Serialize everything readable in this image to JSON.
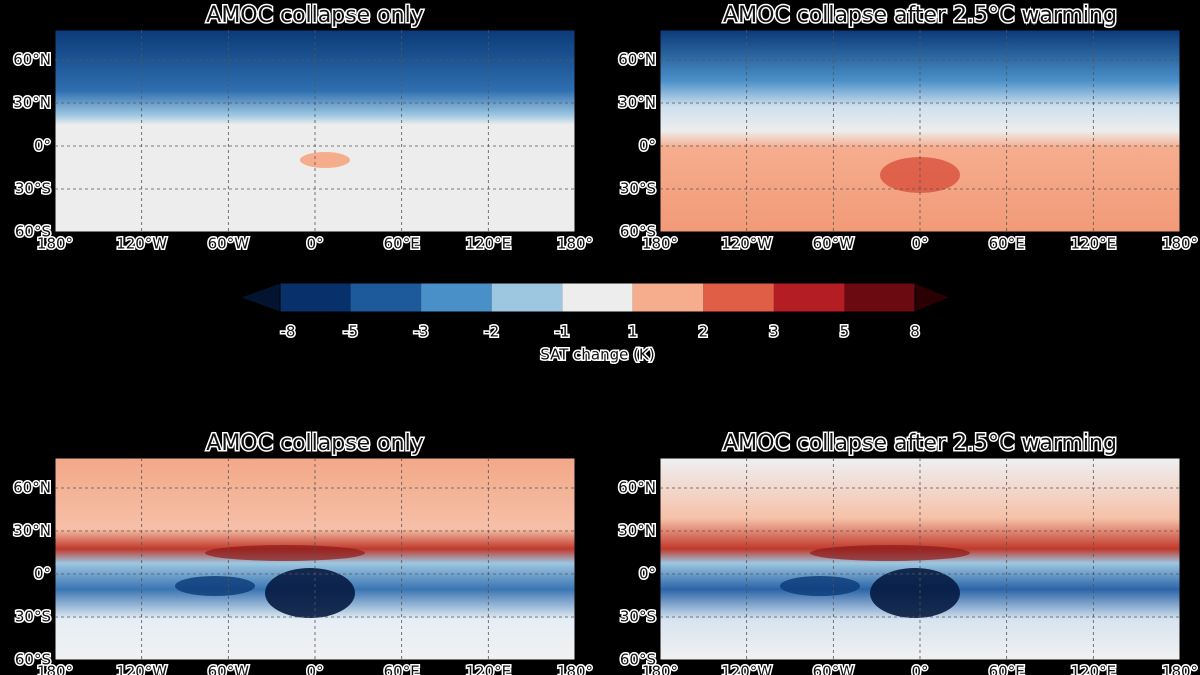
{
  "panels": [
    {
      "title": "AMOC collapse only",
      "field": "sat_a"
    },
    {
      "title": "AMOC collapse after 2.5°C warming",
      "field": "sat_b"
    },
    {
      "title": "AMOC collapse only",
      "field": "pr_a"
    },
    {
      "title": "AMOC collapse after 2.5°C warming",
      "field": "pr_b"
    }
  ],
  "lon_labels": [
    "180°",
    "120°W",
    "60°W",
    "0°",
    "60°E",
    "120°E",
    "180°"
  ],
  "lat_labels": [
    "60°N",
    "30°N",
    "0°",
    "30°S",
    "60°S"
  ],
  "colorbar": {
    "ticks": [
      -8,
      -5,
      -3,
      -2,
      -1,
      1,
      2,
      3,
      5,
      8
    ],
    "colors": [
      "#08306b",
      "#1c5a9c",
      "#4a90c8",
      "#9dc6e0",
      "#ededed",
      "#f6ad8e",
      "#e05e45",
      "#b41d23",
      "#6b0a10"
    ],
    "under": "#021430",
    "over": "#2a0004",
    "label": "SAT change (K)"
  }
}
